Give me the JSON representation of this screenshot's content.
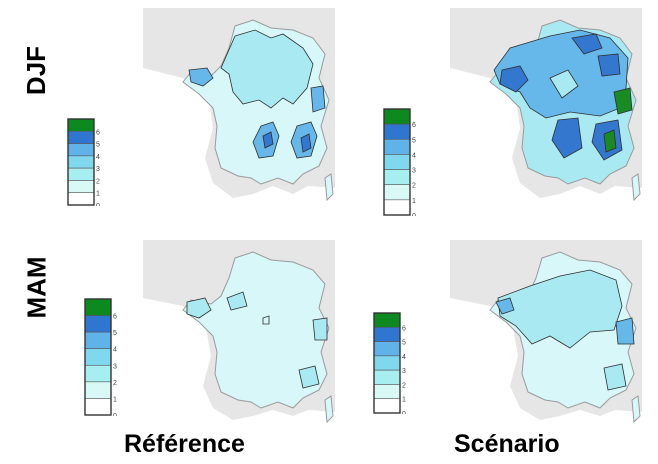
{
  "rows": [
    {
      "id": "djf",
      "label": "DJF"
    },
    {
      "id": "mam",
      "label": "MAM"
    }
  ],
  "columns": [
    {
      "id": "ref",
      "label": "Référence"
    },
    {
      "id": "scen",
      "label": "Scénario"
    }
  ],
  "legend": {
    "ticks": [
      "0",
      "1",
      "2",
      "3",
      "4",
      "5",
      "6"
    ],
    "colors": [
      "#ffffff",
      "#d9f9f6",
      "#a7eef0",
      "#7fd8ee",
      "#5fb3e8",
      "#2f76d0",
      "#0d8a1f"
    ]
  },
  "map_colors": {
    "land_outside": "#e6e6e6",
    "sea": "#ffffff",
    "level1": "#d7f7f8",
    "level2": "#a9eaf2",
    "level3": "#66b7ea",
    "level4": "#3477cf",
    "level6": "#1a8a24",
    "border": "#9a9a9a",
    "contour": "#2f2f2f"
  }
}
